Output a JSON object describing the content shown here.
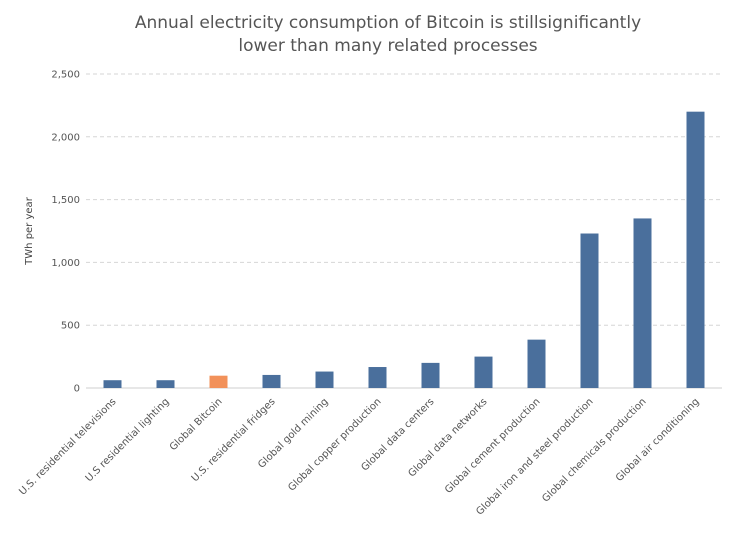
{
  "chart_data": {
    "type": "bar",
    "title_lines": [
      "Annual electricity consumption of Bitcoin is stillsignificantly",
      "lower than many related processes"
    ],
    "ylabel": "TWh per year",
    "xlabel": "",
    "ylim": [
      0,
      2500
    ],
    "yticks": [
      0,
      500,
      1000,
      1500,
      2000,
      2500
    ],
    "ytick_labels": [
      "0",
      "500",
      "1,000",
      "1,500",
      "2,000",
      "2,500"
    ],
    "grid": true,
    "categories": [
      "U.S. residential televisions",
      "U.S residential lighting",
      "Global Bitcoin",
      "U.S. residential fridges",
      "Global gold mining",
      "Global copper production",
      "Global data centers",
      "Global data networks",
      "Global cement production",
      "Global iron and steel production",
      "Global chemicals production",
      "Global air conditioning"
    ],
    "values": [
      62,
      62,
      98,
      104,
      131,
      167,
      200,
      250,
      385,
      1230,
      1350,
      2200
    ],
    "bar_colors": [
      "#4a6f9c",
      "#4a6f9c",
      "#f2915a",
      "#4a6f9c",
      "#4a6f9c",
      "#4a6f9c",
      "#4a6f9c",
      "#4a6f9c",
      "#4a6f9c",
      "#4a6f9c",
      "#4a6f9c",
      "#4a6f9c"
    ]
  }
}
